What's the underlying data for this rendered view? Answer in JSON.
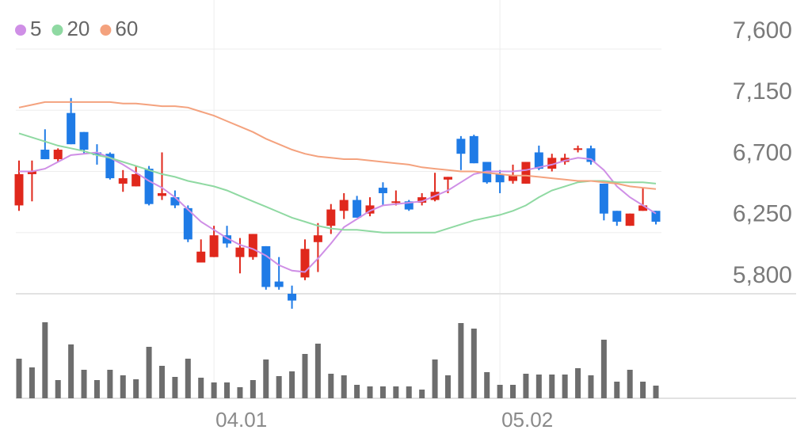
{
  "chart_data": [
    {
      "type": "candlestick",
      "up_color": "#e0281c",
      "down_color": "#1f7be6",
      "open": [
        6450,
        6680,
        6860,
        6790,
        7130,
        6990,
        6840,
        6830,
        6610,
        6590,
        6720,
        6520,
        6510,
        6430,
        6030,
        6070,
        6230,
        6070,
        6070,
        6150,
        5890,
        5800,
        5920,
        6180,
        6300,
        6410,
        6490,
        6390,
        6580,
        6470,
        6480,
        6470,
        6490,
        6640,
        6940,
        6960,
        6770,
        6680,
        6630,
        6610,
        6840,
        6720,
        6770,
        6860,
        6870,
        6610,
        6410,
        6300,
        6410,
        6410
      ],
      "high": [
        6780,
        6780,
        7010,
        6870,
        7240,
        6990,
        6900,
        6840,
        6710,
        6740,
        6740,
        6840,
        6560,
        6450,
        6200,
        6300,
        6300,
        6210,
        6240,
        6150,
        6070,
        5860,
        6200,
        6320,
        6460,
        6540,
        6520,
        6510,
        6620,
        6560,
        6490,
        6540,
        6690,
        6660,
        6960,
        6970,
        6770,
        6710,
        6750,
        6770,
        6890,
        6830,
        6830,
        6890,
        6890,
        6610,
        6410,
        6390,
        6580,
        6410
      ],
      "low": [
        6410,
        6480,
        6790,
        6770,
        6900,
        6830,
        6750,
        6640,
        6550,
        6590,
        6450,
        6490,
        6430,
        6180,
        6030,
        6070,
        6140,
        5950,
        6050,
        5830,
        5830,
        5690,
        5900,
        5960,
        6240,
        6350,
        6360,
        6370,
        6450,
        6450,
        6410,
        6450,
        6480,
        6540,
        6710,
        6760,
        6610,
        6540,
        6610,
        6610,
        6710,
        6700,
        6750,
        6840,
        6750,
        6340,
        6300,
        6300,
        6410,
        6310
      ],
      "close": [
        6680,
        6700,
        6790,
        6860,
        6900,
        6860,
        6820,
        6650,
        6650,
        6680,
        6460,
        6540,
        6450,
        6200,
        6110,
        6230,
        6170,
        6140,
        6240,
        5850,
        5850,
        5750,
        6130,
        6230,
        6420,
        6490,
        6360,
        6450,
        6540,
        6480,
        6420,
        6510,
        6550,
        6660,
        6830,
        6760,
        6620,
        6620,
        6670,
        6770,
        6720,
        6800,
        6800,
        6870,
        6770,
        6390,
        6330,
        6390,
        6450,
        6330
      ],
      "series": [
        {
          "name": "5",
          "color": "#cf8fe6",
          "values": [
            6700,
            6700,
            6720,
            6770,
            6820,
            6830,
            6840,
            6800,
            6750,
            6690,
            6630,
            6580,
            6510,
            6420,
            6330,
            6270,
            6210,
            6160,
            6130,
            6080,
            6010,
            5970,
            5960,
            6060,
            6170,
            6290,
            6350,
            6410,
            6450,
            6460,
            6470,
            6480,
            6520,
            6560,
            6620,
            6680,
            6700,
            6700,
            6700,
            6710,
            6730,
            6750,
            6780,
            6800,
            6790,
            6710,
            6590,
            6510,
            6450,
            6390
          ]
        },
        {
          "name": "20",
          "color": "#8fd9a2",
          "values": [
            6980,
            6950,
            6920,
            6890,
            6870,
            6850,
            6820,
            6800,
            6770,
            6740,
            6710,
            6680,
            6660,
            6630,
            6610,
            6590,
            6560,
            6520,
            6480,
            6440,
            6400,
            6360,
            6330,
            6300,
            6280,
            6270,
            6270,
            6260,
            6250,
            6250,
            6250,
            6250,
            6250,
            6280,
            6310,
            6340,
            6360,
            6380,
            6410,
            6450,
            6510,
            6560,
            6590,
            6620,
            6630,
            6630,
            6620,
            6620,
            6620,
            6610
          ]
        },
        {
          "name": "60",
          "color": "#f4a27e",
          "values": [
            7170,
            7190,
            7210,
            7210,
            7210,
            7210,
            7210,
            7210,
            7200,
            7200,
            7190,
            7180,
            7180,
            7170,
            7140,
            7110,
            7070,
            7030,
            6990,
            6940,
            6900,
            6860,
            6830,
            6810,
            6800,
            6790,
            6790,
            6780,
            6770,
            6760,
            6750,
            6730,
            6720,
            6710,
            6700,
            6700,
            6690,
            6680,
            6670,
            6670,
            6660,
            6650,
            6640,
            6630,
            6630,
            6620,
            6610,
            6590,
            6580,
            6570
          ]
        }
      ],
      "ylim": [
        5800,
        7600
      ],
      "yticks": [
        {
          "value": 7600,
          "label": "7,600"
        },
        {
          "value": 7150,
          "label": "7,150"
        },
        {
          "value": 6700,
          "label": "6,700"
        },
        {
          "value": 6250,
          "label": "6,250"
        },
        {
          "value": 5800,
          "label": "5,800"
        }
      ],
      "grid": true
    },
    {
      "type": "bar",
      "color": "#6d6d6d",
      "categories": [
        null,
        null,
        null,
        null,
        null,
        null,
        null,
        null,
        null,
        null,
        null,
        null,
        null,
        null,
        null,
        "04.01",
        null,
        null,
        null,
        null,
        null,
        null,
        null,
        null,
        null,
        null,
        null,
        null,
        null,
        null,
        null,
        null,
        null,
        null,
        null,
        null,
        null,
        "05.02",
        null,
        null,
        null,
        null,
        null,
        null,
        null,
        null,
        null,
        null,
        null,
        null
      ],
      "values": [
        50,
        39,
        96,
        23,
        68,
        36,
        23,
        36,
        29,
        24,
        65,
        41,
        27,
        50,
        26,
        20,
        20,
        14,
        23,
        49,
        28,
        34,
        56,
        69,
        31,
        29,
        17,
        15,
        15,
        15,
        15,
        11,
        49,
        29,
        95,
        88,
        33,
        17,
        17,
        31,
        30,
        30,
        30,
        38,
        29,
        74,
        21,
        36,
        21,
        16
      ],
      "ylim": [
        0,
        100
      ]
    }
  ]
}
